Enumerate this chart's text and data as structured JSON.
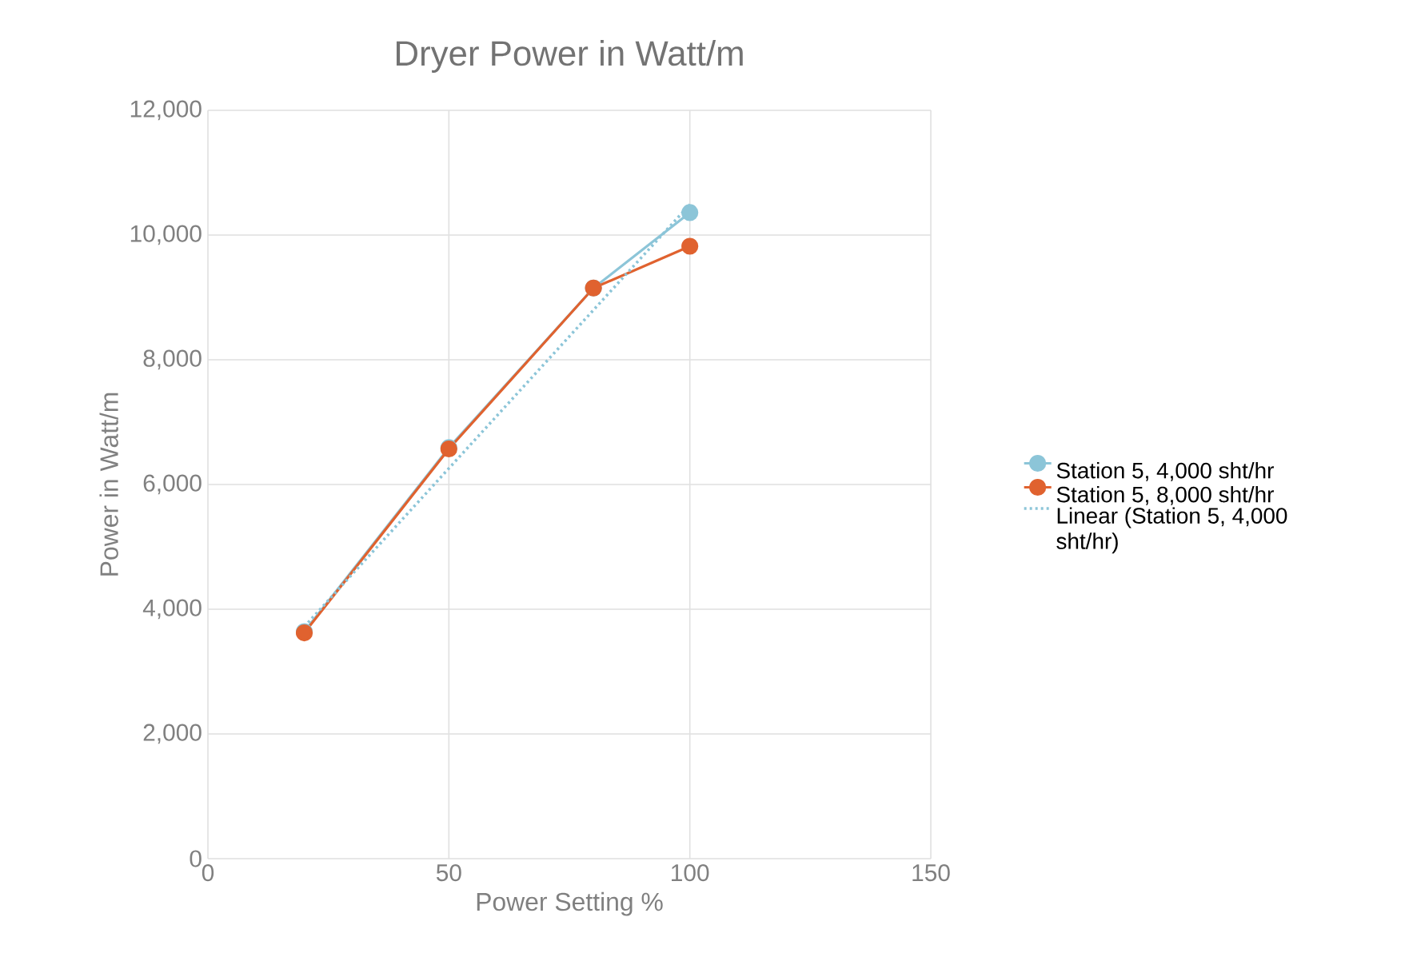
{
  "chart_data": {
    "type": "line",
    "title": "Dryer Power in Watt/m",
    "xlabel": "Power Setting %",
    "ylabel": "Power in Watt/m",
    "xlim": [
      0,
      150
    ],
    "xticks": [
      0,
      50,
      100,
      150
    ],
    "ylim": [
      0,
      12000
    ],
    "yticks": [
      0,
      {
        "value": 2000,
        "label": "2,000"
      },
      {
        "value": 4000,
        "label": "4,000"
      },
      {
        "value": 6000,
        "label": "6,000"
      },
      {
        "value": 8000,
        "label": "8,000"
      },
      {
        "value": 10000,
        "label": "10,000"
      },
      {
        "value": 12000,
        "label": "12,000"
      }
    ],
    "grid": true,
    "legend": "right",
    "series": [
      {
        "name": "Station 5, 4,000 sht/hr",
        "color": "#8cc5d8",
        "marker": "circle",
        "line_style": "solid",
        "x": [
          20,
          50,
          80,
          100
        ],
        "values": [
          3640,
          6590,
          9150,
          10360
        ]
      },
      {
        "name": "Station 5, 8,000 sht/hr",
        "color": "#e0622f",
        "marker": "circle",
        "line_style": "solid",
        "x": [
          20,
          50,
          80,
          100
        ],
        "values": [
          3620,
          6570,
          9150,
          9820
        ]
      },
      {
        "name": "Linear (Station 5, 4,000 sht/hr)",
        "color": "#8cc5d8",
        "marker": "none",
        "line_style": "dotted",
        "x": [
          20,
          100
        ],
        "values": [
          3720,
          10490
        ]
      }
    ]
  }
}
